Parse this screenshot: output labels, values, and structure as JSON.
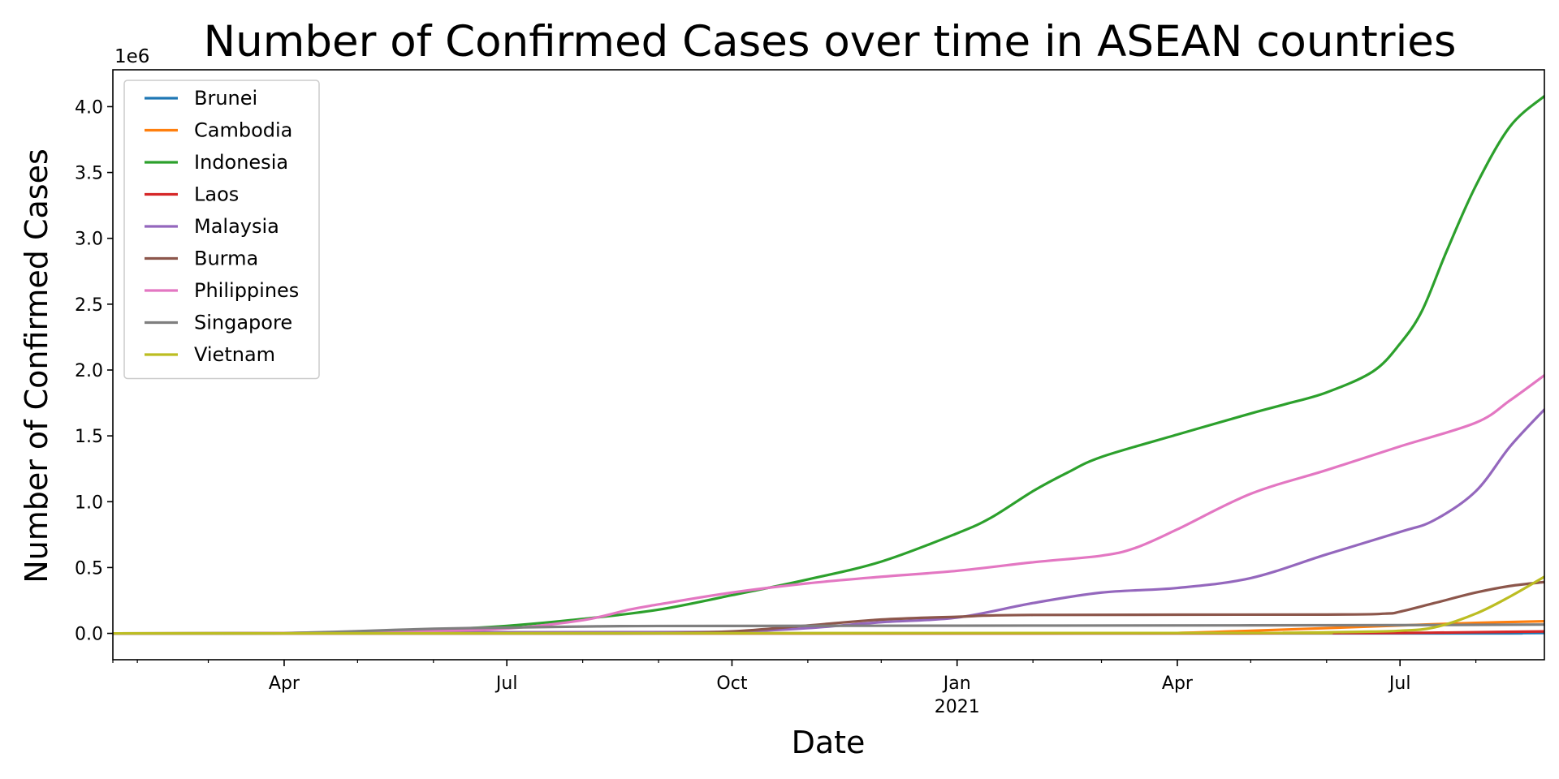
{
  "chart_data": {
    "type": "line",
    "title": "Number of Confirmed Cases over time in ASEAN countries",
    "xlabel": "Date",
    "ylabel": "Number of Confirmed Cases",
    "y_offset_text": "1e6",
    "xlim": [
      "2020-01-22",
      "2021-08-29"
    ],
    "ylim": [
      -200000,
      4280000
    ],
    "y_ticks": [
      0,
      500000,
      1000000,
      1500000,
      2000000,
      2500000,
      3000000,
      3500000,
      4000000
    ],
    "y_tick_labels": [
      "0.0",
      "0.5",
      "1.0",
      "1.5",
      "2.0",
      "2.5",
      "3.0",
      "3.5",
      "4.0"
    ],
    "x_ticks": [
      {
        "date": "2020-04-01",
        "label": "Apr"
      },
      {
        "date": "2020-07-01",
        "label": "Jul"
      },
      {
        "date": "2020-10-01",
        "label": "Oct"
      },
      {
        "date": "2021-01-01",
        "label": "Jan",
        "sublabel": "2021"
      },
      {
        "date": "2021-04-01",
        "label": "Apr"
      },
      {
        "date": "2021-07-01",
        "label": "Jul"
      }
    ],
    "grid": false,
    "legend_position": "upper-left",
    "series": [
      {
        "name": "Brunei",
        "color": "#1f77b4",
        "points": [
          [
            "2020-01-22",
            0
          ],
          [
            "2021-07-01",
            300
          ],
          [
            "2021-08-05",
            800
          ],
          [
            "2021-08-29",
            3000
          ]
        ]
      },
      {
        "name": "Cambodia",
        "color": "#ff7f0e",
        "points": [
          [
            "2020-01-22",
            0
          ],
          [
            "2021-01-15",
            400
          ],
          [
            "2021-03-01",
            1000
          ],
          [
            "2021-04-01",
            3000
          ],
          [
            "2021-05-01",
            20000
          ],
          [
            "2021-06-01",
            40000
          ],
          [
            "2021-07-01",
            60000
          ],
          [
            "2021-08-01",
            80000
          ],
          [
            "2021-08-29",
            92000
          ]
        ]
      },
      {
        "name": "Indonesia",
        "color": "#2ca02c",
        "points": [
          [
            "2020-01-22",
            0
          ],
          [
            "2020-03-01",
            0
          ],
          [
            "2020-04-01",
            2000
          ],
          [
            "2020-05-01",
            10000
          ],
          [
            "2020-06-01",
            27000
          ],
          [
            "2020-07-01",
            57000
          ],
          [
            "2020-08-01",
            110000
          ],
          [
            "2020-09-01",
            180000
          ],
          [
            "2020-10-01",
            290000
          ],
          [
            "2020-11-01",
            410000
          ],
          [
            "2020-12-01",
            545000
          ],
          [
            "2021-01-01",
            760000
          ],
          [
            "2021-01-15",
            880000
          ],
          [
            "2021-02-01",
            1080000
          ],
          [
            "2021-02-15",
            1220000
          ],
          [
            "2021-03-01",
            1340000
          ],
          [
            "2021-04-01",
            1510000
          ],
          [
            "2021-05-01",
            1670000
          ],
          [
            "2021-05-15",
            1740000
          ],
          [
            "2021-06-01",
            1830000
          ],
          [
            "2021-06-20",
            1990000
          ],
          [
            "2021-07-01",
            2200000
          ],
          [
            "2021-07-10",
            2450000
          ],
          [
            "2021-07-20",
            2900000
          ],
          [
            "2021-08-01",
            3400000
          ],
          [
            "2021-08-15",
            3850000
          ],
          [
            "2021-08-29",
            4080000
          ]
        ]
      },
      {
        "name": "Laos",
        "color": "#d62728",
        "points": [
          [
            "2020-01-22",
            0
          ],
          [
            "2021-04-01",
            50
          ],
          [
            "2021-05-01",
            1500
          ],
          [
            "2021-06-01",
            2000
          ],
          [
            "2021-07-01",
            3000
          ],
          [
            "2021-08-01",
            9000
          ],
          [
            "2021-08-29",
            15000
          ]
        ]
      },
      {
        "name": "Malaysia",
        "color": "#9467bd",
        "points": [
          [
            "2020-01-22",
            0
          ],
          [
            "2020-03-01",
            100
          ],
          [
            "2020-04-01",
            3000
          ],
          [
            "2020-06-01",
            8000
          ],
          [
            "2020-09-01",
            9500
          ],
          [
            "2020-10-01",
            12000
          ],
          [
            "2020-11-01",
            40000
          ],
          [
            "2020-12-01",
            85000
          ],
          [
            "2021-01-01",
            120000
          ],
          [
            "2021-02-01",
            230000
          ],
          [
            "2021-03-01",
            310000
          ],
          [
            "2021-04-01",
            345000
          ],
          [
            "2021-05-01",
            420000
          ],
          [
            "2021-06-01",
            600000
          ],
          [
            "2021-07-01",
            770000
          ],
          [
            "2021-07-15",
            860000
          ],
          [
            "2021-08-01",
            1080000
          ],
          [
            "2021-08-15",
            1420000
          ],
          [
            "2021-08-29",
            1700000
          ]
        ]
      },
      {
        "name": "Burma",
        "color": "#8c564b",
        "points": [
          [
            "2020-01-22",
            0
          ],
          [
            "2020-08-15",
            400
          ],
          [
            "2020-09-01",
            1500
          ],
          [
            "2020-10-01",
            15000
          ],
          [
            "2020-11-01",
            60000
          ],
          [
            "2020-12-01",
            105000
          ],
          [
            "2021-01-01",
            126000
          ],
          [
            "2021-02-01",
            140000
          ],
          [
            "2021-06-01",
            143000
          ],
          [
            "2021-06-25",
            150000
          ],
          [
            "2021-07-01",
            165000
          ],
          [
            "2021-07-15",
            230000
          ],
          [
            "2021-08-01",
            310000
          ],
          [
            "2021-08-15",
            360000
          ],
          [
            "2021-08-29",
            390000
          ]
        ]
      },
      {
        "name": "Philippines",
        "color": "#e377c2",
        "points": [
          [
            "2020-01-22",
            0
          ],
          [
            "2020-03-01",
            10
          ],
          [
            "2020-04-01",
            3000
          ],
          [
            "2020-05-01",
            9000
          ],
          [
            "2020-06-01",
            19000
          ],
          [
            "2020-07-01",
            37000
          ],
          [
            "2020-08-01",
            100000
          ],
          [
            "2020-08-20",
            180000
          ],
          [
            "2020-09-01",
            220000
          ],
          [
            "2020-10-01",
            310000
          ],
          [
            "2020-11-01",
            380000
          ],
          [
            "2020-12-01",
            430000
          ],
          [
            "2021-01-01",
            475000
          ],
          [
            "2021-02-01",
            540000
          ],
          [
            "2021-03-01",
            590000
          ],
          [
            "2021-03-15",
            650000
          ],
          [
            "2021-04-01",
            790000
          ],
          [
            "2021-05-01",
            1060000
          ],
          [
            "2021-06-01",
            1240000
          ],
          [
            "2021-07-01",
            1420000
          ],
          [
            "2021-08-01",
            1600000
          ],
          [
            "2021-08-15",
            1770000
          ],
          [
            "2021-08-29",
            1960000
          ]
        ]
      },
      {
        "name": "Singapore",
        "color": "#7f7f7f",
        "points": [
          [
            "2020-01-22",
            0
          ],
          [
            "2020-03-15",
            300
          ],
          [
            "2020-04-01",
            1000
          ],
          [
            "2020-05-01",
            17000
          ],
          [
            "2020-06-01",
            35000
          ],
          [
            "2020-07-01",
            44000
          ],
          [
            "2020-08-01",
            52000
          ],
          [
            "2020-09-01",
            56000
          ],
          [
            "2021-01-01",
            58500
          ],
          [
            "2021-05-01",
            61000
          ],
          [
            "2021-07-01",
            62500
          ],
          [
            "2021-08-01",
            65000
          ],
          [
            "2021-08-29",
            67000
          ]
        ]
      },
      {
        "name": "Vietnam",
        "color": "#bcbd22",
        "points": [
          [
            "2020-01-22",
            0
          ],
          [
            "2021-04-25",
            3000
          ],
          [
            "2021-05-15",
            4500
          ],
          [
            "2021-06-15",
            12000
          ],
          [
            "2021-07-01",
            20000
          ],
          [
            "2021-07-15",
            45000
          ],
          [
            "2021-08-01",
            150000
          ],
          [
            "2021-08-15",
            280000
          ],
          [
            "2021-08-29",
            430000
          ]
        ]
      }
    ]
  }
}
